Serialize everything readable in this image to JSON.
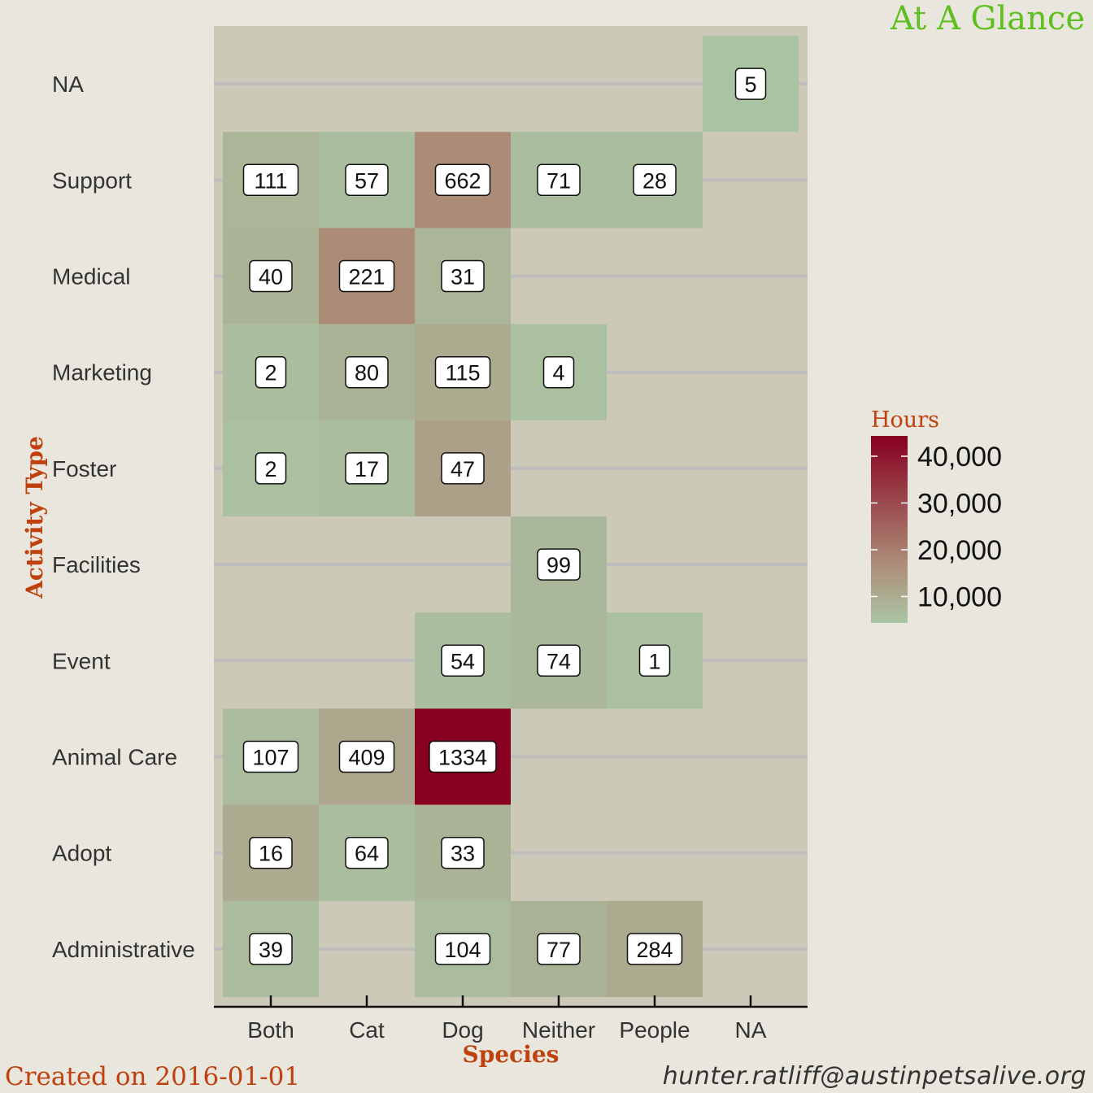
{
  "header": {
    "title": "At A Glance"
  },
  "footer": {
    "created": "Created on 2016-01-01",
    "email": "hunter.ratliff@austinpetsalive.org"
  },
  "chart_data": {
    "type": "heatmap",
    "xlabel": "Species",
    "ylabel": "Activity Type",
    "x_categories": [
      "Both",
      "Cat",
      "Dog",
      "Neither",
      "People",
      "NA"
    ],
    "y_categories": [
      "Administrative",
      "Adopt",
      "Animal Care",
      "Event",
      "Facilities",
      "Foster",
      "Marketing",
      "Medical",
      "Support",
      "NA"
    ],
    "legend": {
      "title": "Hours",
      "ticks": [
        10000,
        20000,
        30000,
        40000
      ],
      "tick_labels": [
        "10,000",
        "20,000",
        "30,000",
        "40,000"
      ],
      "range": [
        0,
        40000
      ],
      "low_color": "#aac4a4",
      "mid_color": "#ad907a",
      "high_color": "#870020",
      "placement": "right"
    },
    "cells": [
      {
        "x": "Both",
        "y": "NA",
        "label": "",
        "hours": null
      },
      {
        "x": "NA",
        "y": "NA",
        "label": "5",
        "hours": 200
      },
      {
        "x": "Both",
        "y": "Support",
        "label": "111",
        "hours": 3500
      },
      {
        "x": "Cat",
        "y": "Support",
        "label": "57",
        "hours": 1500
      },
      {
        "x": "Dog",
        "y": "Support",
        "label": "662",
        "hours": 13000
      },
      {
        "x": "Neither",
        "y": "Support",
        "label": "71",
        "hours": 1500
      },
      {
        "x": "People",
        "y": "Support",
        "label": "28",
        "hours": 1500
      },
      {
        "x": "Both",
        "y": "Medical",
        "label": "40",
        "hours": 4000
      },
      {
        "x": "Cat",
        "y": "Medical",
        "label": "221",
        "hours": 13000
      },
      {
        "x": "Dog",
        "y": "Medical",
        "label": "31",
        "hours": 3500
      },
      {
        "x": "Both",
        "y": "Marketing",
        "label": "2",
        "hours": 1500
      },
      {
        "x": "Cat",
        "y": "Marketing",
        "label": "80",
        "hours": 4000
      },
      {
        "x": "Dog",
        "y": "Marketing",
        "label": "115",
        "hours": 6000
      },
      {
        "x": "Neither",
        "y": "Marketing",
        "label": "4",
        "hours": 1000
      },
      {
        "x": "Both",
        "y": "Foster",
        "label": "2",
        "hours": 1000
      },
      {
        "x": "Cat",
        "y": "Foster",
        "label": "17",
        "hours": 1500
      },
      {
        "x": "Dog",
        "y": "Foster",
        "label": "47",
        "hours": 8000
      },
      {
        "x": "Neither",
        "y": "Facilities",
        "label": "99",
        "hours": 3000
      },
      {
        "x": "Dog",
        "y": "Event",
        "label": "54",
        "hours": 1500
      },
      {
        "x": "Neither",
        "y": "Event",
        "label": "74",
        "hours": 3000
      },
      {
        "x": "People",
        "y": "Event",
        "label": "1",
        "hours": 1000
      },
      {
        "x": "Both",
        "y": "Animal Care",
        "label": "107",
        "hours": 2000
      },
      {
        "x": "Cat",
        "y": "Animal Care",
        "label": "409",
        "hours": 7000
      },
      {
        "x": "Dog",
        "y": "Animal Care",
        "label": "1334",
        "hours": 40000
      },
      {
        "x": "Both",
        "y": "Adopt",
        "label": "16",
        "hours": 6000
      },
      {
        "x": "Cat",
        "y": "Adopt",
        "label": "64",
        "hours": 1500
      },
      {
        "x": "Dog",
        "y": "Adopt",
        "label": "33",
        "hours": 4000
      },
      {
        "x": "Both",
        "y": "Administrative",
        "label": "39",
        "hours": 2000
      },
      {
        "x": "Dog",
        "y": "Administrative",
        "label": "104",
        "hours": 2000
      },
      {
        "x": "Neither",
        "y": "Administrative",
        "label": "77",
        "hours": 4000
      },
      {
        "x": "People",
        "y": "Administrative",
        "label": "284",
        "hours": 6000
      }
    ]
  }
}
